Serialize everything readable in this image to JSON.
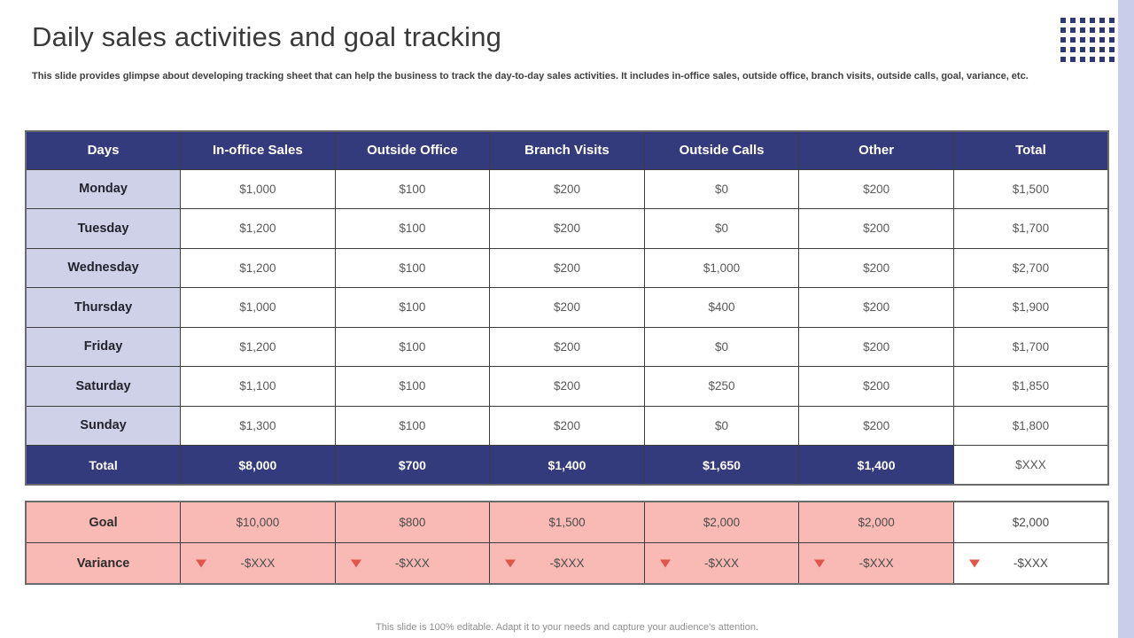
{
  "slide": {
    "title": "Daily sales activities and goal tracking",
    "subtitle": "This slide provides glimpse about developing tracking sheet that can help the business to track the day-to-day sales activities. It includes in-office sales, outside office, branch visits, outside calls, goal, variance, etc.",
    "footer": "This slide is 100% editable.  Adapt it to your needs and capture your audience's attention."
  },
  "table": {
    "headers": [
      "Days",
      "In-office Sales",
      "Outside Office",
      "Branch Visits",
      "Outside Calls",
      "Other",
      "Total"
    ],
    "rows": [
      {
        "day": "Monday",
        "values": [
          "$1,000",
          "$100",
          "$200",
          "$0",
          "$200",
          "$1,500"
        ]
      },
      {
        "day": "Tuesday",
        "values": [
          "$1,200",
          "$100",
          "$200",
          "$0",
          "$200",
          "$1,700"
        ]
      },
      {
        "day": "Wednesday",
        "values": [
          "$1,200",
          "$100",
          "$200",
          "$1,000",
          "$200",
          "$2,700"
        ]
      },
      {
        "day": "Thursday",
        "values": [
          "$1,000",
          "$100",
          "$200",
          "$400",
          "$200",
          "$1,900"
        ]
      },
      {
        "day": "Friday",
        "values": [
          "$1,200",
          "$100",
          "$200",
          "$0",
          "$200",
          "$1,700"
        ]
      },
      {
        "day": "Saturday",
        "values": [
          "$1,100",
          "$100",
          "$200",
          "$250",
          "$200",
          "$1,850"
        ]
      },
      {
        "day": "Sunday",
        "values": [
          "$1,300",
          "$100",
          "$200",
          "$0",
          "$200",
          "$1,800"
        ]
      }
    ],
    "total": {
      "label": "Total",
      "values": [
        "$8,000",
        "$700",
        "$1,400",
        "$1,650",
        "$1,400",
        "$XXX"
      ]
    }
  },
  "goals": {
    "goal": {
      "label": "Goal",
      "values": [
        "$10,000",
        "$800",
        "$1,500",
        "$2,000",
        "$2,000",
        "$2,000"
      ]
    },
    "variance": {
      "label": "Variance",
      "values": [
        "-$XXX",
        "-$XXX",
        "-$XXX",
        "-$XXX",
        "-$XXX",
        "-$XXX"
      ]
    }
  },
  "icons": {
    "variance_down_icon": "triangle-down",
    "dots_pattern": "square-dot-grid-6x5"
  },
  "colors": {
    "header_navy": "#343B7D",
    "day_lavender": "#CFD1E9",
    "goal_pink": "#F9B9B4",
    "accent_strip_lavender": "#C9CDE9",
    "variance_red": "#E0564B",
    "dots_navy": "#2F3875",
    "value_text_gray": "#595959"
  }
}
